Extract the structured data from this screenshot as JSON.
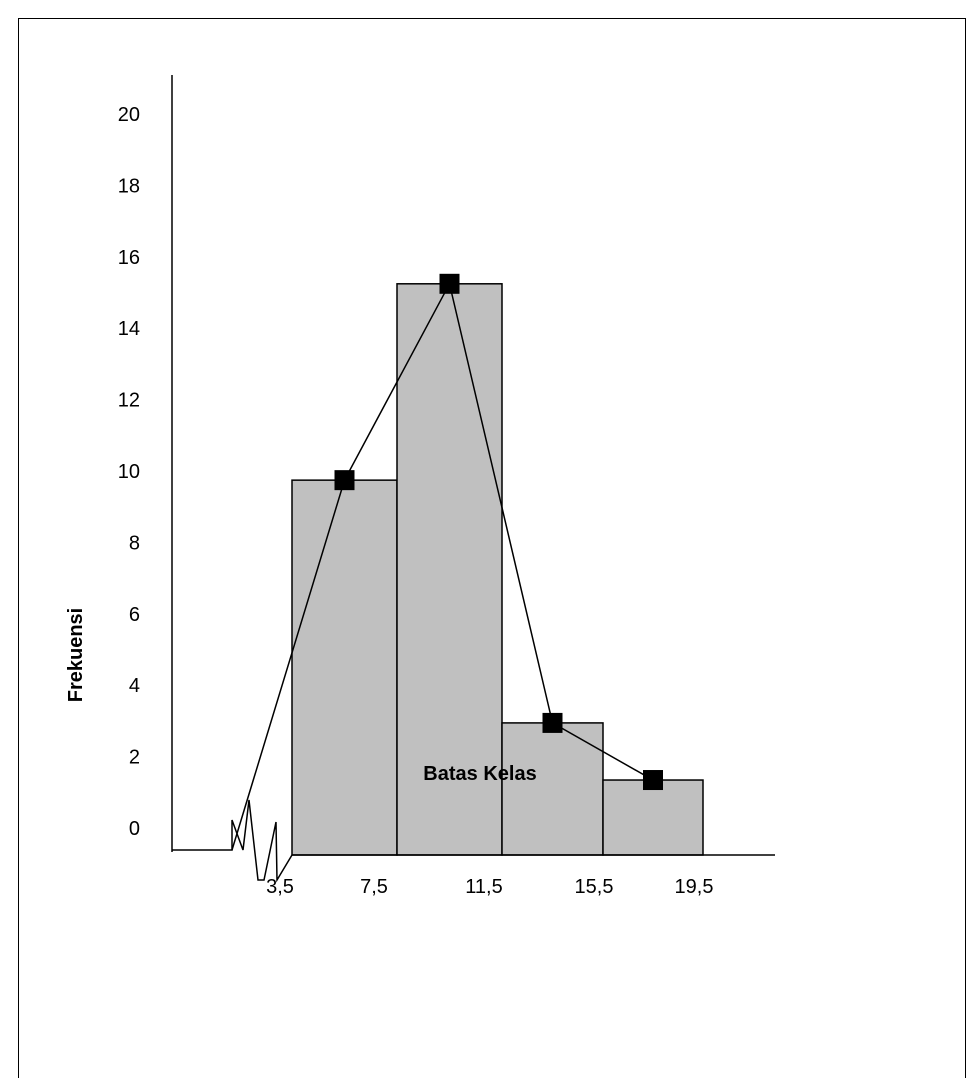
{
  "chart_data": {
    "type": "bar",
    "subtype": "histogram with frequency polygon",
    "xlabel": "Batas Kelas",
    "ylabel": "Frekuensi",
    "y_ticks": [
      "0",
      "2",
      "4",
      "6",
      "8",
      "10",
      "12",
      "14",
      "16",
      "18",
      "20"
    ],
    "ylim": [
      0,
      20
    ],
    "x_tick_labels": [
      "3,5",
      "7,5",
      "11,5",
      "15,5",
      "19,5"
    ],
    "axis_break": true,
    "bars": [
      {
        "from": 5.5,
        "to": 9.5,
        "value": 10.5
      },
      {
        "from": 9.5,
        "to": 13.5,
        "value": 16
      },
      {
        "from": 13.5,
        "to": 17.5,
        "value": 3.7
      },
      {
        "from": 17.5,
        "to": 21.5,
        "value": 2.1
      }
    ],
    "polygon_start_x": 3.5,
    "polygon_start_y": 0,
    "bar_color": "#c0c0c0",
    "marker_color": "#000000"
  }
}
